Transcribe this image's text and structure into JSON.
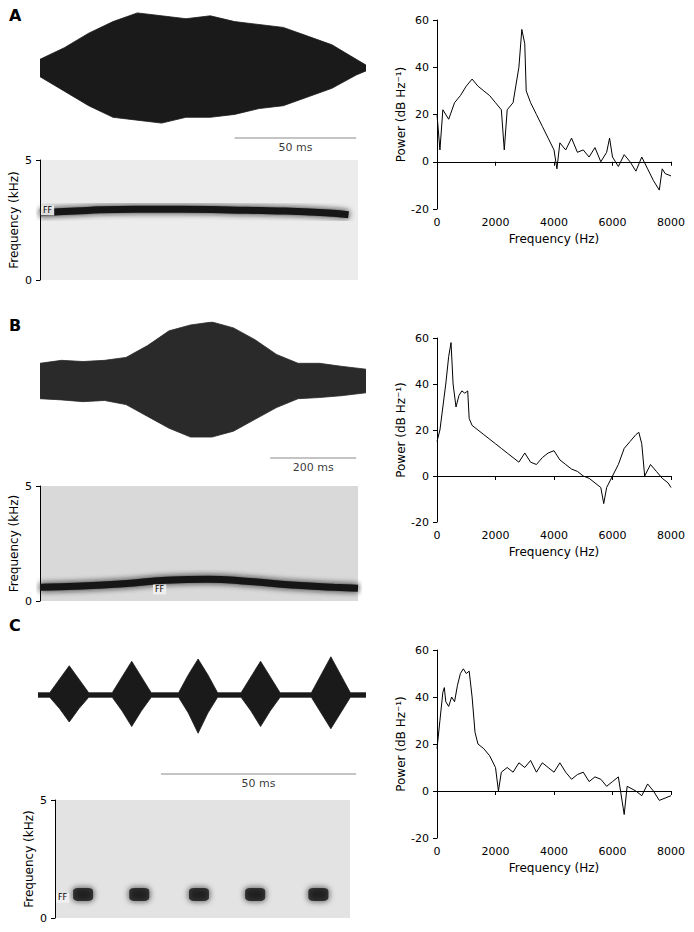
{
  "chart_data": [
    {
      "type": "area",
      "title": "A",
      "tick_labels": false,
      "x": [
        0,
        10,
        20,
        30,
        40,
        50,
        60,
        70,
        80,
        90,
        100,
        110,
        120,
        130,
        134
      ],
      "series": [
        {
          "color": "#1a1a1a",
          "values": [
            0.15,
            0.35,
            0.6,
            0.8,
            0.95,
            0.9,
            0.85,
            0.9,
            0.8,
            0.75,
            0.7,
            0.55,
            0.4,
            0.15,
            0.05
          ]
        },
        {
          "color": "#1a1a1a",
          "values": [
            -0.15,
            -0.4,
            -0.65,
            -0.85,
            -0.9,
            -0.95,
            -0.85,
            -0.85,
            -0.8,
            -0.7,
            -0.65,
            -0.5,
            -0.35,
            -0.12,
            -0.05
          ]
        }
      ],
      "xlim": [
        0,
        134
      ],
      "ylim": [
        -1,
        1
      ],
      "scale_bar": {
        "value": 50,
        "label": "50 ms"
      }
    },
    {
      "type": "line",
      "tick_labels": "y",
      "ylabel": "Frequency (kHz)",
      "x": [
        0,
        20,
        40,
        60,
        80,
        100,
        120,
        130
      ],
      "values": [
        2.8,
        2.9,
        2.95,
        2.95,
        2.92,
        2.88,
        2.8,
        2.72
      ],
      "color": "#141414",
      "xlim": [
        0,
        134
      ],
      "ylim": [
        0,
        5
      ],
      "yticks": [
        0,
        5
      ],
      "annotations": [
        {
          "text": "FF",
          "x": 0,
          "y": 2.9
        }
      ]
    },
    {
      "type": "line",
      "xlabel": "Frequency (Hz)",
      "ylabel": "Power (dB Hz⁻¹)",
      "color": "#000000",
      "grid": false,
      "x": [
        0,
        100,
        200,
        400,
        600,
        800,
        1000,
        1200,
        1400,
        1600,
        1800,
        2000,
        2200,
        2300,
        2400,
        2600,
        2800,
        2900,
        3000,
        3050,
        3200,
        3400,
        3600,
        3800,
        4000,
        4100,
        4200,
        4400,
        4600,
        4800,
        5000,
        5200,
        5400,
        5600,
        5800,
        5900,
        6000,
        6200,
        6400,
        6600,
        6800,
        7000,
        7200,
        7400,
        7600,
        7700,
        7800,
        8000
      ],
      "values": [
        20,
        5,
        22,
        18,
        25,
        28,
        32,
        35,
        32,
        30,
        28,
        25,
        22,
        5,
        22,
        25,
        40,
        56,
        50,
        30,
        25,
        20,
        15,
        10,
        5,
        -3,
        8,
        5,
        10,
        4,
        5,
        2,
        6,
        0,
        4,
        10,
        2,
        -2,
        3,
        0,
        -4,
        2,
        -3,
        -8,
        -12,
        -3,
        -5,
        -6
      ],
      "xlim": [
        0,
        8000
      ],
      "xticks": [
        0,
        2000,
        4000,
        6000,
        8000
      ],
      "ylim": [
        -20,
        60
      ],
      "yticks": [
        -20,
        0,
        20,
        40,
        60
      ],
      "reference_line": {
        "y": 0,
        "line_style": "dotted"
      }
    },
    {
      "type": "area",
      "title": "B",
      "tick_labels": false,
      "x": [
        0,
        50,
        100,
        150,
        200,
        250,
        300,
        350,
        400,
        450,
        500,
        550,
        600,
        650,
        700,
        758
      ],
      "series": [
        {
          "color": "#2a2a2a",
          "values": [
            0.3,
            0.35,
            0.33,
            0.35,
            0.4,
            0.6,
            0.85,
            0.95,
            1.0,
            0.9,
            0.7,
            0.45,
            0.3,
            0.3,
            0.25,
            0.2
          ]
        },
        {
          "color": "#2a2a2a",
          "values": [
            -0.3,
            -0.32,
            -0.35,
            -0.33,
            -0.4,
            -0.6,
            -0.8,
            -0.95,
            -0.95,
            -0.85,
            -0.65,
            -0.45,
            -0.3,
            -0.28,
            -0.25,
            -0.2
          ]
        }
      ],
      "xlim": [
        0,
        758
      ],
      "ylim": [
        -1,
        1
      ],
      "scale_bar": {
        "value": 200,
        "label": "200 ms"
      }
    },
    {
      "type": "line",
      "tick_labels": "y",
      "ylabel": "Frequency (kHz)",
      "x": [
        0,
        100,
        200,
        300,
        400,
        500,
        600,
        700,
        758
      ],
      "values": [
        0.6,
        0.65,
        0.75,
        0.9,
        0.95,
        0.85,
        0.7,
        0.6,
        0.55
      ],
      "color": "#141414",
      "xlim": [
        0,
        758
      ],
      "ylim": [
        0,
        5
      ],
      "yticks": [
        0,
        5
      ],
      "annotations": [
        {
          "text": "FF",
          "x": 267,
          "y": 0.5
        }
      ]
    },
    {
      "type": "line",
      "xlabel": "Frequency (Hz)",
      "ylabel": "Power (dB Hz⁻¹)",
      "color": "#000000",
      "grid": false,
      "x": [
        0,
        100,
        200,
        300,
        400,
        480,
        550,
        650,
        750,
        850,
        950,
        1050,
        1100,
        1200,
        1400,
        1600,
        1800,
        2000,
        2200,
        2400,
        2600,
        2800,
        3000,
        3200,
        3400,
        3600,
        3800,
        4000,
        4200,
        4400,
        4600,
        4800,
        5000,
        5200,
        5400,
        5600,
        5700,
        5800,
        6000,
        6200,
        6400,
        6600,
        6800,
        6900,
        7000,
        7100,
        7300,
        7500,
        7700,
        7900,
        8000
      ],
      "values": [
        15,
        20,
        30,
        40,
        52,
        58,
        40,
        30,
        35,
        37,
        36,
        37,
        25,
        22,
        20,
        18,
        16,
        14,
        12,
        10,
        8,
        6,
        10,
        6,
        5,
        8,
        10,
        11,
        7,
        5,
        3,
        2,
        0,
        -1,
        -3,
        -5,
        -12,
        -5,
        0,
        5,
        12,
        15,
        18,
        19,
        14,
        0,
        5,
        2,
        -1,
        -3,
        -5
      ],
      "xlim": [
        0,
        8000
      ],
      "xticks": [
        0,
        2000,
        4000,
        6000,
        8000
      ],
      "ylim": [
        -20,
        60
      ],
      "yticks": [
        -20,
        0,
        20,
        40,
        60
      ],
      "reference_line": {
        "y": 0,
        "line_style": "dotted"
      }
    },
    {
      "type": "area",
      "title": "C",
      "tick_labels": false,
      "x": [
        0,
        3,
        5.5,
        8,
        10.5,
        13,
        19,
        21.5,
        24,
        26.5,
        29,
        36,
        38.5,
        41,
        43.5,
        46,
        52,
        54.5,
        57,
        59.5,
        62,
        70,
        72.5,
        75,
        77.5,
        80,
        84
      ],
      "series": [
        {
          "color": "#1a1a1a",
          "values": [
            0.05,
            0.05,
            0.35,
            0.65,
            0.35,
            0.05,
            0.05,
            0.4,
            0.75,
            0.4,
            0.05,
            0.05,
            0.45,
            0.8,
            0.45,
            0.05,
            0.05,
            0.4,
            0.75,
            0.4,
            0.05,
            0.05,
            0.45,
            0.85,
            0.45,
            0.05,
            0.05
          ]
        },
        {
          "color": "#1a1a1a",
          "values": [
            -0.05,
            -0.05,
            -0.3,
            -0.6,
            -0.3,
            -0.05,
            -0.05,
            -0.35,
            -0.7,
            -0.35,
            -0.05,
            -0.05,
            -0.4,
            -0.85,
            -0.4,
            -0.05,
            -0.05,
            -0.35,
            -0.7,
            -0.35,
            -0.05,
            -0.05,
            -0.4,
            -0.75,
            -0.4,
            -0.05,
            -0.05
          ]
        }
      ],
      "xlim": [
        0,
        84
      ],
      "ylim": [
        -1,
        1
      ],
      "scale_bar": {
        "value": 50,
        "label": "50 ms"
      }
    },
    {
      "type": "scatter",
      "marker": "roundRect",
      "tick_labels": "y",
      "ylabel": "Frequency (kHz)",
      "x": [
        8,
        24,
        41,
        57,
        75
      ],
      "values": [
        1,
        1,
        1,
        1,
        1
      ],
      "color": "#141414",
      "xlim": [
        0,
        84
      ],
      "ylim": [
        0,
        5
      ],
      "yticks": [
        0,
        5
      ],
      "annotations": [
        {
          "text": "FF",
          "x": 0,
          "y": 0.85
        }
      ]
    },
    {
      "type": "line",
      "xlabel": "Frequency (Hz)",
      "ylabel": "Power (dB Hz⁻¹)",
      "color": "#000000",
      "grid": false,
      "x": [
        0,
        100,
        200,
        250,
        300,
        400,
        500,
        600,
        700,
        800,
        900,
        1000,
        1100,
        1200,
        1300,
        1400,
        1600,
        1800,
        2000,
        2100,
        2200,
        2400,
        2600,
        2800,
        3000,
        3200,
        3400,
        3600,
        3800,
        4000,
        4200,
        4400,
        4600,
        4800,
        5000,
        5200,
        5400,
        5600,
        5800,
        6000,
        6200,
        6400,
        6500,
        6800,
        7000,
        7200,
        7400,
        7600,
        7800,
        8000
      ],
      "values": [
        18,
        30,
        42,
        44,
        38,
        36,
        40,
        38,
        45,
        50,
        52,
        50,
        51,
        40,
        25,
        20,
        18,
        15,
        10,
        0,
        8,
        10,
        8,
        12,
        10,
        13,
        8,
        12,
        10,
        8,
        12,
        8,
        5,
        7,
        8,
        4,
        6,
        5,
        2,
        4,
        6,
        -10,
        2,
        0,
        -2,
        3,
        0,
        -4,
        -3,
        -2
      ],
      "xlim": [
        0,
        8000
      ],
      "xticks": [
        0,
        2000,
        4000,
        6000,
        8000
      ],
      "ylim": [
        -20,
        60
      ],
      "yticks": [
        -20,
        0,
        20,
        40,
        60
      ],
      "reference_line": {
        "y": 0,
        "line_style": "dotted"
      }
    }
  ]
}
